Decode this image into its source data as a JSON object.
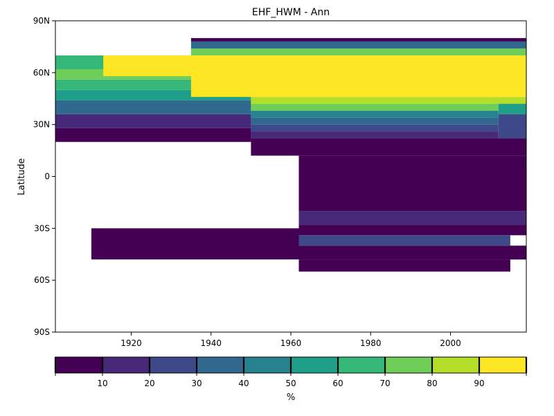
{
  "chart_data": {
    "type": "heatmap",
    "title": "EHF_HWM - Ann",
    "ylabel": "Latitude",
    "xlabel": "",
    "xlim": [
      1901,
      2019
    ],
    "ylim": [
      -90,
      90
    ],
    "x_ticks": [
      1920,
      1940,
      1960,
      1980,
      2000
    ],
    "y_ticks": [
      90,
      60,
      30,
      0,
      -30,
      -60,
      -90
    ],
    "y_tick_labels": [
      "90N",
      "60N",
      "30N",
      "0",
      "30S",
      "60S",
      "90S"
    ],
    "grid": false,
    "colorbar": {
      "label": "%",
      "range": [
        0,
        100
      ],
      "bounds": [
        0,
        10,
        20,
        30,
        40,
        50,
        60,
        70,
        80,
        90,
        100
      ],
      "tick_values": [
        10,
        20,
        30,
        40,
        50,
        60,
        70,
        80,
        90
      ],
      "tick_labels": [
        "10",
        "20",
        "30",
        "40",
        "50",
        "60",
        "70",
        "80",
        "90"
      ],
      "colors": [
        "#440154",
        "#482878",
        "#3e4989",
        "#31688e",
        "#26828e",
        "#1f9e89",
        "#35b779",
        "#6ece58",
        "#b5de2b",
        "#fde725"
      ]
    },
    "regions": [
      {
        "x": [
          1901,
          1950
        ],
        "y": [
          20,
          28
        ],
        "value": 5
      },
      {
        "x": [
          1901,
          1950
        ],
        "y": [
          28,
          36
        ],
        "value": 15
      },
      {
        "x": [
          1901,
          1950
        ],
        "y": [
          36,
          44
        ],
        "value": 35
      },
      {
        "x": [
          1901,
          1950
        ],
        "y": [
          44,
          50
        ],
        "value": 55
      },
      {
        "x": [
          1901,
          1950
        ],
        "y": [
          50,
          56
        ],
        "value": 65
      },
      {
        "x": [
          1901,
          1950
        ],
        "y": [
          56,
          62
        ],
        "value": 75
      },
      {
        "x": [
          1901,
          1950
        ],
        "y": [
          62,
          70
        ],
        "value": 65
      },
      {
        "x": [
          1913,
          1935
        ],
        "y": [
          58,
          70
        ],
        "value": 95
      },
      {
        "x": [
          1935,
          2019
        ],
        "y": [
          46,
          70
        ],
        "value": 95
      },
      {
        "x": [
          1935,
          2019
        ],
        "y": [
          70,
          74
        ],
        "value": 75
      },
      {
        "x": [
          1935,
          2019
        ],
        "y": [
          74,
          78
        ],
        "value": 35
      },
      {
        "x": [
          1935,
          2019
        ],
        "y": [
          78,
          80
        ],
        "value": 5
      },
      {
        "x": [
          1950,
          2019
        ],
        "y": [
          42,
          46
        ],
        "value": 85
      },
      {
        "x": [
          1950,
          2012
        ],
        "y": [
          38,
          42
        ],
        "value": 75
      },
      {
        "x": [
          1950,
          2012
        ],
        "y": [
          34,
          38
        ],
        "value": 45
      },
      {
        "x": [
          1950,
          2012
        ],
        "y": [
          30,
          34
        ],
        "value": 35
      },
      {
        "x": [
          1950,
          2012
        ],
        "y": [
          26,
          30
        ],
        "value": 25
      },
      {
        "x": [
          1950,
          2012
        ],
        "y": [
          22,
          26
        ],
        "value": 15
      },
      {
        "x": [
          2012,
          2019
        ],
        "y": [
          36,
          42
        ],
        "value": 55
      },
      {
        "x": [
          2012,
          2019
        ],
        "y": [
          22,
          36
        ],
        "value": 25
      },
      {
        "x": [
          1950,
          2019
        ],
        "y": [
          12,
          22
        ],
        "value": 5
      },
      {
        "x": [
          1962,
          2019
        ],
        "y": [
          -20,
          12
        ],
        "value": 5
      },
      {
        "x": [
          1962,
          2019
        ],
        "y": [
          -28,
          -20
        ],
        "value": 15
      },
      {
        "x": [
          1962,
          2019
        ],
        "y": [
          -34,
          -28
        ],
        "value": 5
      },
      {
        "x": [
          1962,
          2015
        ],
        "y": [
          -40,
          -34
        ],
        "value": 25
      },
      {
        "x": [
          1962,
          2019
        ],
        "y": [
          -48,
          -40
        ],
        "value": 5
      },
      {
        "x": [
          1962,
          2015
        ],
        "y": [
          -55,
          -48
        ],
        "value": 5
      },
      {
        "x": [
          1910,
          1962
        ],
        "y": [
          -48,
          -30
        ],
        "value": 5
      }
    ]
  }
}
